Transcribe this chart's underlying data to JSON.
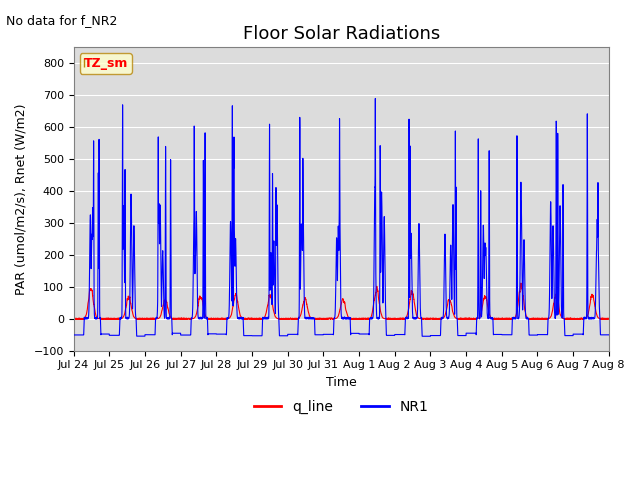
{
  "title": "Floor Solar Radiations",
  "xlabel": "Time",
  "ylabel": "PAR (umol/m2/s), Rnet (W/m2)",
  "no_data_label": "No data for f_NR2",
  "legend_label": "TZ_sm",
  "ylim": [
    -100,
    850
  ],
  "yticks": [
    -100,
    0,
    100,
    200,
    300,
    400,
    500,
    600,
    700,
    800
  ],
  "bg_color": "#dcdcdc",
  "line1_color": "red",
  "line2_color": "blue",
  "line1_label": "q_line",
  "line2_label": "NR1",
  "n_days": 15,
  "pts_per_day": 288,
  "xtick_labels": [
    "Jul 24",
    "Jul 25",
    "Jul 26",
    "Jul 27",
    "Jul 28",
    "Jul 29",
    "Jul 30",
    "Jul 31",
    "Aug 1",
    "Aug 2",
    "Aug 3",
    "Aug 4",
    "Aug 5",
    "Aug 6",
    "Aug 7",
    "Aug 8"
  ],
  "title_fontsize": 13,
  "axis_fontsize": 9,
  "tick_fontsize": 8
}
